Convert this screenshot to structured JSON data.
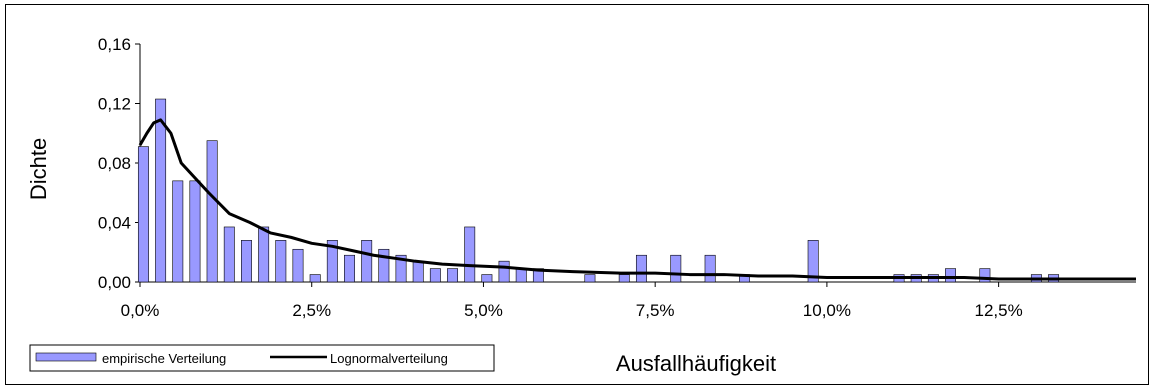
{
  "chart_data": {
    "type": "bar",
    "xlabel": "Ausfallhäufigkeit",
    "ylabel": "Dichte",
    "ylim": [
      0,
      0.16
    ],
    "y_ticks": [
      "0,00",
      "0,04",
      "0,08",
      "0,12",
      "0,16"
    ],
    "x_ticks": [
      "0,0%",
      "2,5%",
      "5,0%",
      "7,5%",
      "10,0%",
      "12,5%"
    ],
    "xlim": [
      0,
      14.5
    ],
    "grid": false,
    "legend_position": "bottom-left",
    "series": [
      {
        "name": "empirische Verteilung",
        "type": "bar",
        "color": "#9999ff",
        "x": [
          0.05,
          0.3,
          0.55,
          0.8,
          1.05,
          1.3,
          1.55,
          1.8,
          2.05,
          2.3,
          2.55,
          2.8,
          3.05,
          3.3,
          3.55,
          3.8,
          4.05,
          4.3,
          4.55,
          4.8,
          5.05,
          5.3,
          5.55,
          5.8,
          6.55,
          7.05,
          7.3,
          7.8,
          8.3,
          8.8,
          9.8,
          11.05,
          11.3,
          11.55,
          11.8,
          12.3,
          13.05,
          13.3
        ],
        "values": [
          0.091,
          0.123,
          0.068,
          0.068,
          0.095,
          0.037,
          0.028,
          0.037,
          0.028,
          0.022,
          0.005,
          0.028,
          0.018,
          0.028,
          0.022,
          0.018,
          0.014,
          0.009,
          0.009,
          0.037,
          0.005,
          0.014,
          0.009,
          0.009,
          0.005,
          0.005,
          0.018,
          0.018,
          0.018,
          0.005,
          0.028,
          0.005,
          0.005,
          0.005,
          0.009,
          0.009,
          0.005,
          0.005
        ]
      },
      {
        "name": "Lognormalverteilung",
        "type": "line",
        "color": "#000000",
        "x": [
          0,
          0.1,
          0.2,
          0.3,
          0.45,
          0.6,
          0.8,
          1.0,
          1.3,
          1.6,
          1.9,
          2.2,
          2.5,
          2.8,
          3.1,
          3.4,
          3.7,
          4.0,
          4.4,
          4.8,
          5.3,
          5.8,
          6.3,
          7.0,
          7.5,
          8.0,
          8.5,
          9.0,
          9.5,
          10.0,
          11.0,
          12.0,
          12.5,
          13.0,
          14.0,
          14.5
        ],
        "values": [
          0.092,
          0.1,
          0.107,
          0.109,
          0.1,
          0.08,
          0.07,
          0.06,
          0.046,
          0.04,
          0.033,
          0.03,
          0.026,
          0.024,
          0.021,
          0.018,
          0.016,
          0.014,
          0.012,
          0.011,
          0.01,
          0.008,
          0.007,
          0.006,
          0.006,
          0.005,
          0.005,
          0.004,
          0.004,
          0.003,
          0.003,
          0.003,
          0.002,
          0.002,
          0.002,
          0.002
        ]
      }
    ]
  }
}
